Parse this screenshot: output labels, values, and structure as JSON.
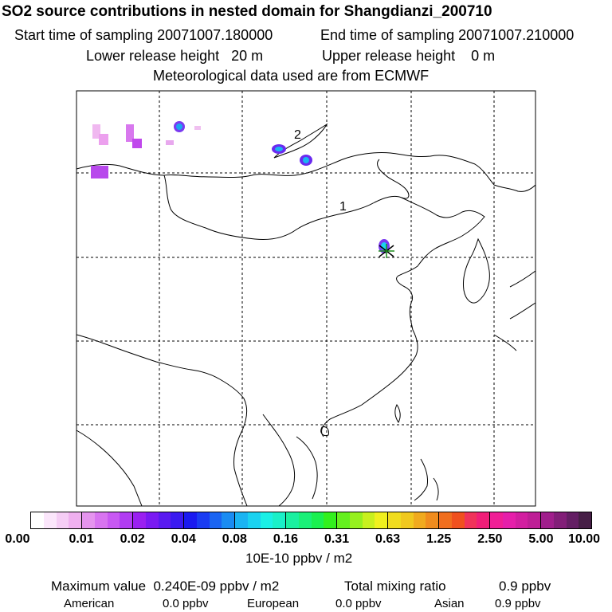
{
  "header": {
    "title": "SO2 source contributions in nested domain for Shangdianzi_200710",
    "start_time": "Start time of sampling 20071007.180000",
    "end_time": "End time of sampling 20071007.210000",
    "lower_release": "Lower release height   20 m",
    "upper_release": "Upper release height    0 m",
    "met_data": "Meteorological data used are from ECMWF"
  },
  "map": {
    "labels": [
      "1",
      "2"
    ],
    "source_marker": "cross-icon"
  },
  "colorbar": {
    "ticks": [
      "0.00",
      "0.01",
      "0.02",
      "0.04",
      "0.08",
      "0.16",
      "0.31",
      "0.63",
      "1.25",
      "2.50",
      "5.00",
      "10.00"
    ],
    "units": "10E-10 ppbv / m2",
    "colors": [
      "#ffffff",
      "#fbe6fb",
      "#f5cdf5",
      "#efb0ef",
      "#e594ee",
      "#d874f0",
      "#c858f3",
      "#b13cf2",
      "#9a20f0",
      "#7a1af2",
      "#5a1af0",
      "#3b1af0",
      "#1a1af0",
      "#1a3cf2",
      "#1a64f2",
      "#1a8cf2",
      "#1ab4f2",
      "#1ad2f0",
      "#1af0e6",
      "#1af0c8",
      "#1af0a0",
      "#1af078",
      "#1af050",
      "#32f01e",
      "#64f01e",
      "#96f01e",
      "#c8f01e",
      "#f0f01e",
      "#f0dc1e",
      "#f0c81e",
      "#f0aa1e",
      "#f08c1e",
      "#f06e1e",
      "#f0501e",
      "#f0325a",
      "#f01e78",
      "#f01e96",
      "#e61eaa",
      "#d21ea0",
      "#be1e96",
      "#a01e8c",
      "#821e78",
      "#641e64",
      "#461e46"
    ]
  },
  "stats": {
    "max_label": "Maximum value  0.240E-09 ppbv / m2",
    "total_label": "Total mixing ratio",
    "total_value": "0.9 ppbv",
    "american_label": "American",
    "american_value": "0.0 ppbv",
    "european_label": "European",
    "european_value": "0.0 ppbv",
    "asian_label": "Asian",
    "asian_value": "0.9 ppbv"
  }
}
